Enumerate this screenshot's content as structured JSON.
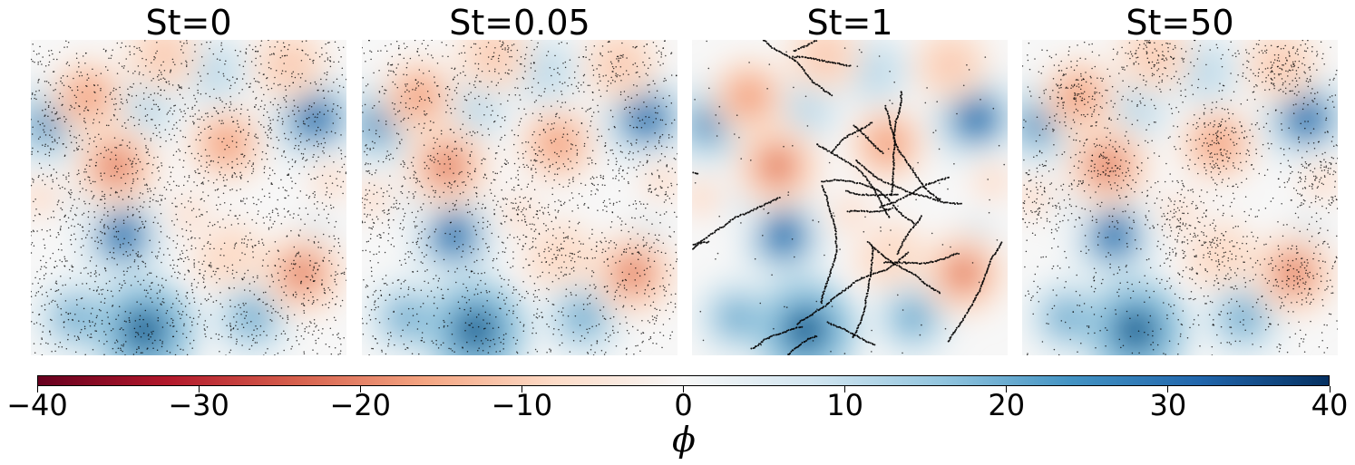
{
  "chart_data": {
    "type": "heatmap",
    "description_panels": "four square fields colored by phi with overlaid black particle dots",
    "panels": [
      {
        "title": "St=0",
        "particle_mode": "uniform"
      },
      {
        "title": "St=0.05",
        "particle_mode": "weakly-clustered"
      },
      {
        "title": "St=1",
        "particle_mode": "filaments"
      },
      {
        "title": "St=50",
        "particle_mode": "clustered"
      }
    ],
    "field_centers": [
      {
        "x": 0.05,
        "y": 0.27,
        "phi": 28
      },
      {
        "x": 0.9,
        "y": 0.25,
        "phi": 32
      },
      {
        "x": 0.36,
        "y": 0.22,
        "phi": 12
      },
      {
        "x": 0.58,
        "y": 0.1,
        "phi": 14
      },
      {
        "x": 0.29,
        "y": 0.62,
        "phi": 30
      },
      {
        "x": 0.14,
        "y": 0.88,
        "phi": 20
      },
      {
        "x": 0.36,
        "y": 0.92,
        "phi": 38
      },
      {
        "x": 0.7,
        "y": 0.88,
        "phi": 22
      },
      {
        "x": 0.9,
        "y": 0.62,
        "phi": 10
      },
      {
        "x": 0.13,
        "y": 0.52,
        "phi": 8
      },
      {
        "x": 0.18,
        "y": 0.18,
        "phi": -18
      },
      {
        "x": 0.42,
        "y": 0.05,
        "phi": -15
      },
      {
        "x": 0.82,
        "y": 0.08,
        "phi": -16
      },
      {
        "x": 0.27,
        "y": 0.4,
        "phi": -26
      },
      {
        "x": 0.62,
        "y": 0.33,
        "phi": -18
      },
      {
        "x": 0.86,
        "y": 0.74,
        "phi": -24
      },
      {
        "x": 0.62,
        "y": 0.68,
        "phi": -12
      },
      {
        "x": 0.03,
        "y": 0.5,
        "phi": -10
      },
      {
        "x": 0.5,
        "y": 0.55,
        "phi": -8
      },
      {
        "x": 0.95,
        "y": 0.45,
        "phi": -9
      }
    ],
    "colorbar": {
      "min": -40,
      "max": 40,
      "ticks": [
        -40,
        -30,
        -20,
        -10,
        0,
        10,
        20,
        30,
        40
      ],
      "tick_labels": [
        "−40",
        "−30",
        "−20",
        "−10",
        "0",
        "10",
        "20",
        "30",
        "40"
      ],
      "label": "ϕ",
      "colormap": "RdBu",
      "color_stops": [
        "#67001f",
        "#b2182b",
        "#d6604d",
        "#f4a582",
        "#fddbc7",
        "#f7f7f7",
        "#d1e5f0",
        "#92c5de",
        "#4393c3",
        "#2166ac",
        "#053061"
      ]
    }
  }
}
